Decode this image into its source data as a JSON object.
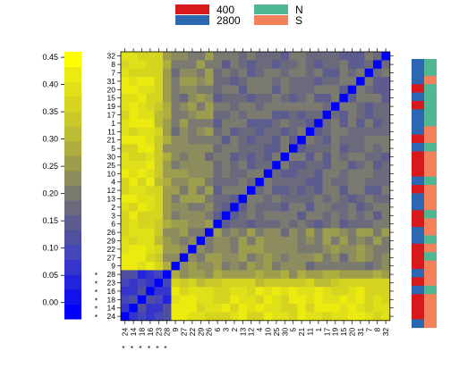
{
  "legend": {
    "items": [
      {
        "label": "400",
        "color": "#d7191c"
      },
      {
        "label": "2800",
        "color": "#2c67b1"
      },
      {
        "label": "N",
        "color": "#4fb893"
      },
      {
        "label": "S",
        "color": "#f4805c"
      }
    ]
  },
  "chart_data": {
    "type": "heatmap",
    "title": "",
    "xlabel": "",
    "ylabel": "",
    "order": [
      "24",
      "14",
      "18",
      "16",
      "23",
      "28",
      "9",
      "27",
      "22",
      "29",
      "26",
      "6",
      "3",
      "2",
      "13",
      "12",
      "4",
      "10",
      "25",
      "30",
      "5",
      "21",
      "11",
      "1",
      "17",
      "19",
      "15",
      "20",
      "31",
      "7",
      "8",
      "32"
    ],
    "row_order_top_to_bottom": [
      "32",
      "8",
      "7",
      "31",
      "20",
      "15",
      "19",
      "17",
      "1",
      "11",
      "21",
      "5",
      "30",
      "25",
      "10",
      "4",
      "12",
      "13",
      "2",
      "3",
      "6",
      "26",
      "29",
      "22",
      "27",
      "9",
      "28",
      "23",
      "16",
      "18",
      "14",
      "24"
    ],
    "starred": [
      "24",
      "14",
      "18",
      "16",
      "23",
      "28"
    ],
    "star_marker": "*",
    "colorbar": {
      "min": -0.03,
      "max": 0.46,
      "ticks": [
        "0.45",
        "0.40",
        "0.35",
        "0.30",
        "0.25",
        "0.20",
        "0.15",
        "0.10",
        "0.05",
        "0.00"
      ],
      "tick_values": [
        0.45,
        0.4,
        0.35,
        0.3,
        0.25,
        0.2,
        0.15,
        0.1,
        0.05,
        0.0
      ],
      "colors": [
        "#0000ff",
        "#1111ee",
        "#2323dd",
        "#3535cc",
        "#4646bb",
        "#5050a0",
        "#5c5c8e",
        "#6a6a7c",
        "#7a7a70",
        "#8c8c5e",
        "#9d9d4e",
        "#aeae40",
        "#bcbc34",
        "#c9c92a",
        "#d5d520",
        "#e0e018",
        "#ebeb10",
        "#ffff00"
      ]
    },
    "annotation_columns": {
      "condition": {
        "24": "2800",
        "14": "400",
        "18": "400",
        "16": "400",
        "23": "2800",
        "28": "400",
        "9": "2800",
        "27": "400",
        "22": "400",
        "29": "400",
        "26": "2800",
        "6": "2800",
        "3": "400",
        "2": "400",
        "13": "2800",
        "12": "2800",
        "4": "400",
        "10": "2800",
        "25": "400",
        "30": "400",
        "5": "400",
        "21": "2800",
        "11": "400",
        "1": "2800",
        "17": "2800",
        "19": "2800",
        "15": "400",
        "20": "2800",
        "31": "400",
        "7": "2800",
        "8": "2800",
        "32": "2800"
      },
      "group": {
        "24": "S",
        "14": "S",
        "18": "S",
        "16": "S",
        "23": "N",
        "28": "S",
        "9": "S",
        "27": "S",
        "22": "N",
        "29": "S",
        "26": "N",
        "6": "S",
        "3": "S",
        "2": "N",
        "13": "S",
        "12": "S",
        "4": "S",
        "10": "N",
        "25": "S",
        "30": "S",
        "5": "S",
        "21": "N",
        "11": "S",
        "1": "S",
        "17": "N",
        "19": "N",
        "15": "N",
        "20": "N",
        "31": "N",
        "7": "S",
        "8": "N",
        "32": "N"
      }
    },
    "value_model": {
      "diagonal": -0.03,
      "starred_vs_starred": 0.08,
      "starred_vs_other": 0.39,
      "other_vs_other": 0.18,
      "mid_block": [
        "9",
        "27",
        "22",
        "29",
        "26"
      ],
      "mid_block_value": 0.22
    }
  }
}
